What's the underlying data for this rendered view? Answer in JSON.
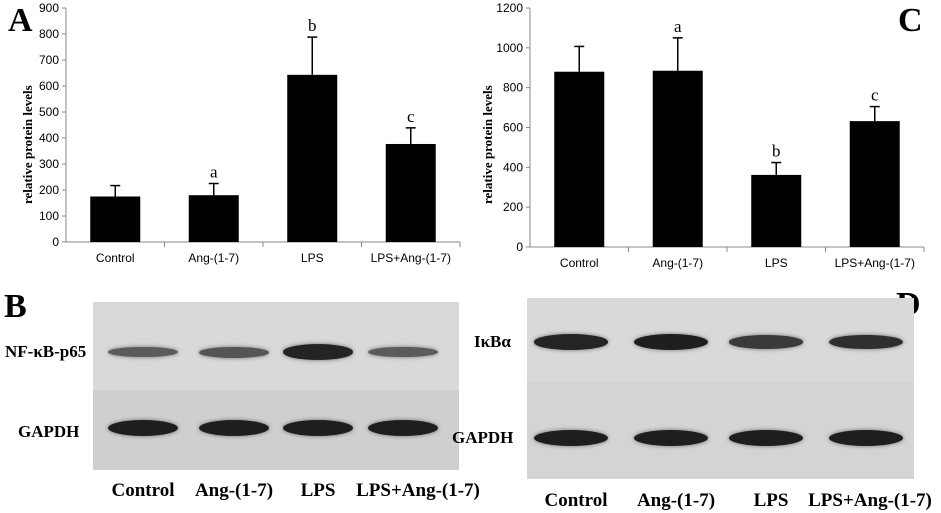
{
  "chart_data": [
    {
      "type": "bar",
      "panel": "A",
      "categories": [
        "Control",
        "Ang-(1-7)",
        "LPS",
        "LPS+Ang-(1-7)"
      ],
      "values": [
        175,
        180,
        643,
        377
      ],
      "errors": [
        42,
        45,
        145,
        62
      ],
      "significance": [
        "",
        "a",
        "b",
        "c"
      ],
      "ylabel": "relative protein levels",
      "ylim": [
        0,
        900
      ],
      "yticks": [
        0,
        100,
        200,
        300,
        400,
        500,
        600,
        700,
        800,
        900
      ],
      "bar_color": "#000000",
      "grid": false
    },
    {
      "type": "bar",
      "panel": "C",
      "categories": [
        "Control",
        "Ang-(1-7)",
        "LPS",
        "LPS+Ang-(1-7)"
      ],
      "values": [
        880,
        885,
        362,
        632
      ],
      "errors": [
        127,
        165,
        62,
        73
      ],
      "significance": [
        "",
        "a",
        "b",
        "c"
      ],
      "ylabel": "relative protein levels",
      "ylim": [
        0,
        1200
      ],
      "yticks": [
        0,
        200,
        400,
        600,
        800,
        1000,
        1200
      ],
      "bar_color": "#000000",
      "grid": false
    }
  ],
  "blots": [
    {
      "panel": "B",
      "rows": [
        {
          "label": "NF-κB-p65",
          "intensities": [
            0.45,
            0.5,
            0.95,
            0.45
          ]
        },
        {
          "label": "GAPDH",
          "intensities": [
            1,
            1,
            1,
            1
          ]
        }
      ],
      "lanes": [
        "Control",
        "Ang-(1-7)",
        "LPS",
        "LPS+Ang-(1-7)"
      ]
    },
    {
      "panel": "D",
      "rows": [
        {
          "label": "IκBα",
          "intensities": [
            0.95,
            1,
            0.75,
            0.85
          ]
        },
        {
          "label": "GAPDH",
          "intensities": [
            1,
            1,
            1,
            1
          ]
        }
      ],
      "lanes": [
        "Control",
        "Ang-(1-7)",
        "LPS",
        "LPS+Ang-(1-7)"
      ]
    }
  ]
}
